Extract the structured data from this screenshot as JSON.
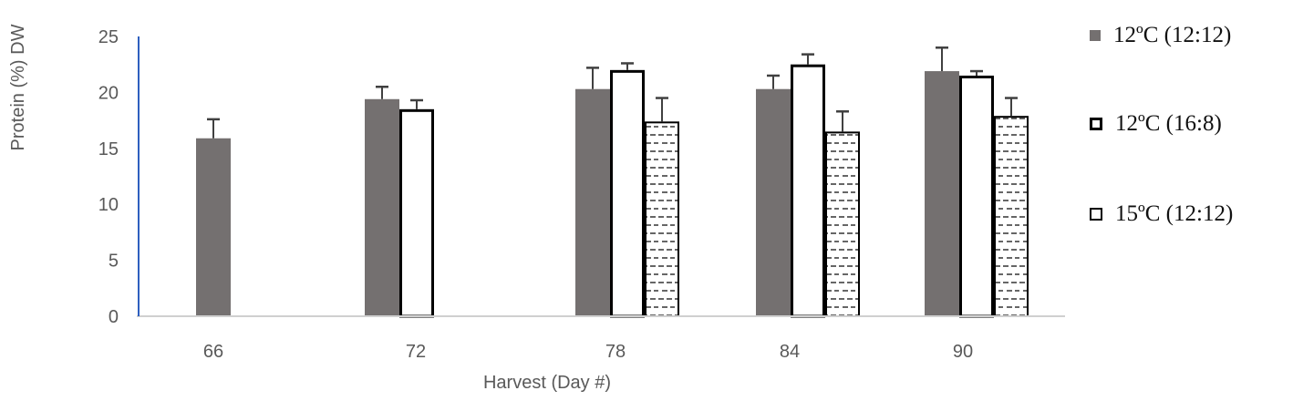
{
  "chart_data": {
    "type": "bar",
    "title": "",
    "xlabel": "Harvest (Day #)",
    "ylabel": "Protein (%) DW",
    "ylim": [
      0,
      25
    ],
    "yticks": [
      0,
      5,
      10,
      15,
      20,
      25
    ],
    "categories": [
      "66",
      "72",
      "78",
      "84",
      "90"
    ],
    "grid": false,
    "legend_position": "right",
    "series": [
      {
        "name": "12ºC (12:12)",
        "style": "solid-gray",
        "values": [
          15.9,
          19.4,
          20.3,
          20.3,
          21.9
        ],
        "errors": [
          1.7,
          1.1,
          1.9,
          1.2,
          2.1
        ]
      },
      {
        "name": "12ºC (16:8)",
        "style": "white-outline",
        "values": [
          null,
          18.5,
          22.0,
          22.5,
          21.5
        ],
        "errors": [
          null,
          0.8,
          0.6,
          0.9,
          0.4
        ]
      },
      {
        "name": "15ºC (12:12)",
        "style": "dashed-pattern",
        "values": [
          null,
          null,
          17.4,
          16.5,
          17.9
        ],
        "errors": [
          null,
          null,
          2.1,
          1.8,
          1.6
        ]
      }
    ]
  },
  "legend": {
    "items": [
      {
        "label": "12ºC (12:12)"
      },
      {
        "label": "12ºC (16:8)"
      },
      {
        "label": "15ºC (12:12)"
      }
    ]
  },
  "colors": {
    "gray_bar": "#747070",
    "outline": "#000000",
    "y_axis": "#2e5fbf",
    "x_axis": "#d0d0d0",
    "tick_text": "#595959"
  }
}
